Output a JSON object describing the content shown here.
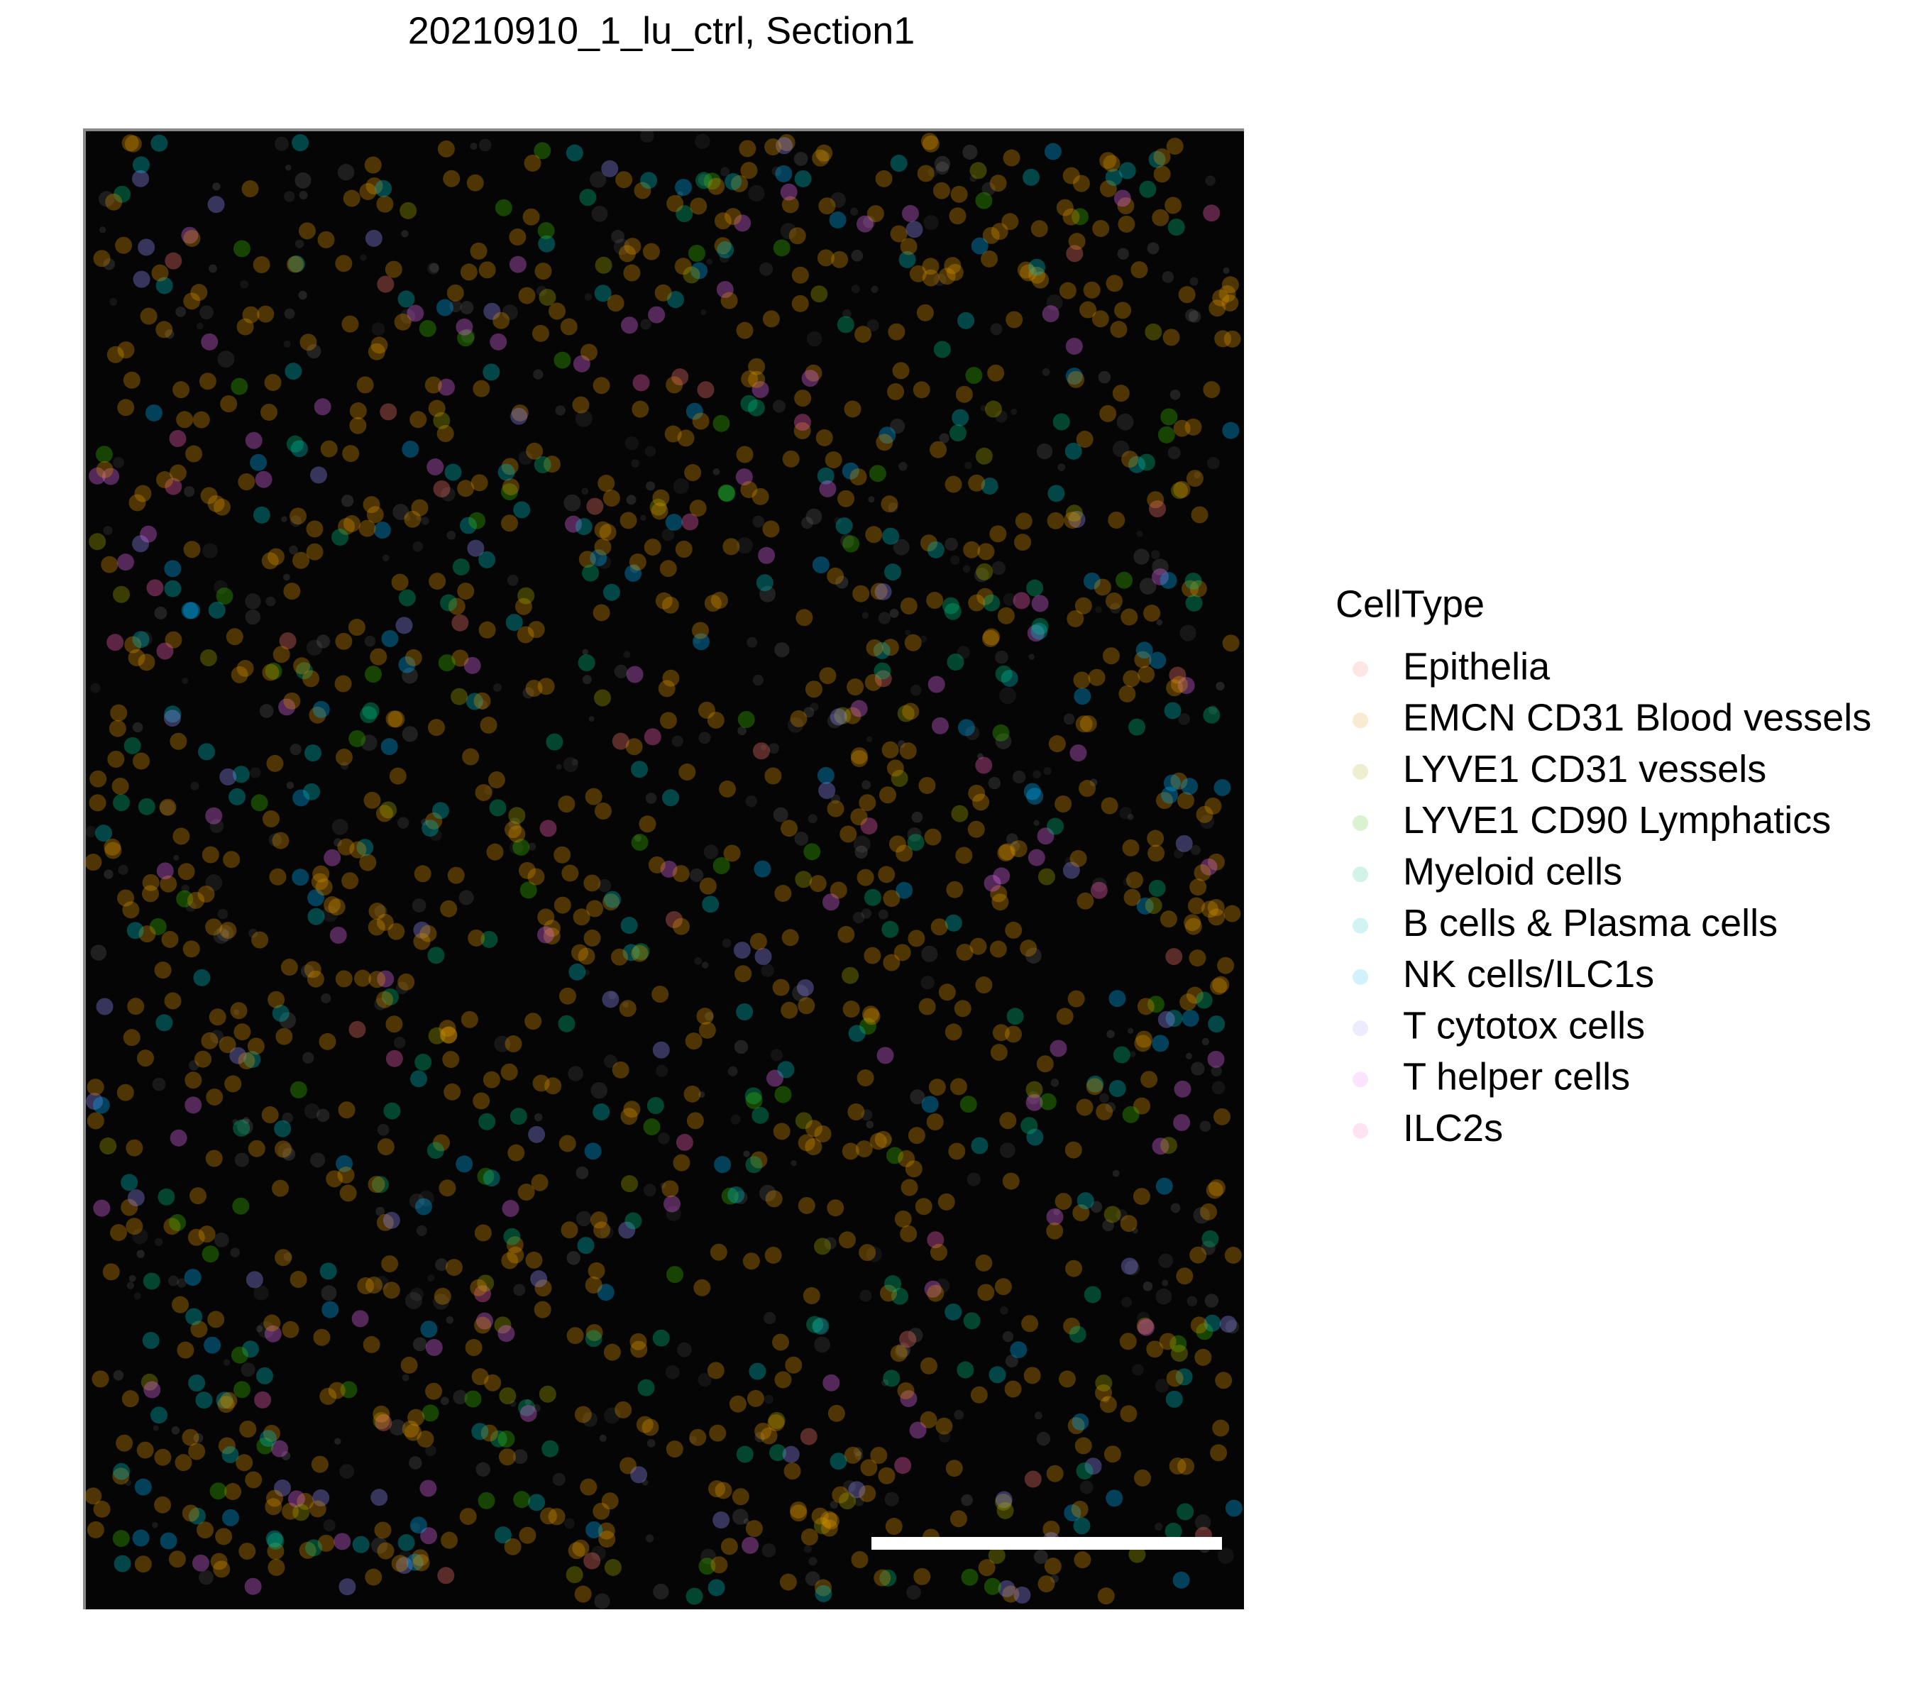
{
  "title": "20210910_1_lu_ctrl, Section1",
  "legend": {
    "title": "CellType",
    "items": [
      {
        "label": "Epithelia",
        "color": "#F8766D"
      },
      {
        "label": "EMCN CD31 Blood vessels",
        "color": "#D89000"
      },
      {
        "label": "LYVE1 CD31 vessels",
        "color": "#A3A500"
      },
      {
        "label": "LYVE1 CD90 Lymphatics",
        "color": "#39B600"
      },
      {
        "label": "Myeloid cells",
        "color": "#00BF7D"
      },
      {
        "label": "B cells & Plasma cells",
        "color": "#00BFC4"
      },
      {
        "label": "NK cells/ILC1s",
        "color": "#00B0F6"
      },
      {
        "label": "T cytotox cells",
        "color": "#9590FF"
      },
      {
        "label": "T helper cells",
        "color": "#E76BF3"
      },
      {
        "label": "ILC2s",
        "color": "#FF62BC"
      }
    ]
  }
}
